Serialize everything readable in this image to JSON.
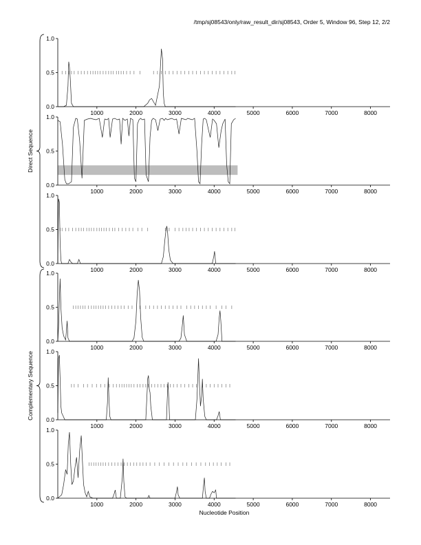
{
  "page": {
    "title": "/tmp/sj08543/only/raw_result_dir/sj08543, Order 5, Window 96, Step 12, 2/2"
  },
  "chart_data": {
    "type": "line",
    "xlabel": "Nucleotide Position",
    "xlim": [
      0,
      8500
    ],
    "ylim": [
      0,
      1
    ],
    "x_ticks": [
      "1000",
      "2000",
      "3000",
      "4000",
      "5000",
      "6000",
      "7000",
      "8000"
    ],
    "y_ticks": [
      "0.0",
      "0.5",
      "1.0"
    ],
    "group_labels": [
      "Direct Sequence",
      "Complementary Sequence"
    ],
    "panels": [
      {
        "group": "Direct Sequence",
        "frame": 1,
        "series": [
          {
            "x": [
              0,
              150,
              220,
              260,
              280,
              300,
              320,
              350,
              400,
              2200,
              2300,
              2350,
              2400,
              2500,
              2600,
              2650,
              2680,
              2700,
              2720,
              2750,
              2800,
              4550
            ],
            "y": [
              0,
              0,
              0.02,
              0.3,
              0.66,
              0.58,
              0.4,
              0.05,
              0,
              0,
              0.05,
              0.1,
              0.12,
              0.02,
              0.3,
              0.85,
              0.7,
              0.2,
              0.05,
              0,
              0,
              0
            ]
          }
        ],
        "stop_ticks": {
          "y": 0.5,
          "x": [
            110,
            200,
            280,
            350,
            420,
            520,
            600,
            680,
            760,
            840,
            900,
            960,
            1020,
            1080,
            1160,
            1230,
            1300,
            1360,
            1420,
            1500,
            1560,
            1620,
            1680,
            1760,
            1850,
            1950,
            2100,
            2450,
            2550,
            2650,
            2750,
            2850,
            2950,
            3050,
            3150,
            3250,
            3350,
            3450,
            3550,
            3650,
            3750,
            3850,
            3950,
            4050,
            4150,
            4250,
            4350,
            4450,
            4530
          ]
        }
      },
      {
        "group": "Direct Sequence",
        "frame": 1,
        "series": [
          {
            "x": [
              0,
              60,
              120,
              180,
              220,
              280,
              350,
              400,
              460,
              500,
              560,
              620,
              680,
              760,
              840,
              900,
              980,
              1060,
              1140,
              1200,
              1260,
              1300,
              1340,
              1400,
              1460,
              1520,
              1580,
              1620,
              1660,
              1720,
              1780,
              1820,
              1860,
              1920,
              1960,
              2000,
              2040,
              2080,
              2120,
              2160,
              2220,
              2260,
              2320,
              2360,
              2400,
              2440,
              2500,
              2560,
              2620,
              2680,
              2720,
              2760,
              2800,
              2860,
              2920,
              2980,
              3040,
              3100,
              3160,
              3220,
              3280,
              3320,
              3380,
              3440,
              3500,
              3560,
              3600,
              3640,
              3680,
              3720,
              3760,
              3800,
              3860,
              3900,
              3960,
              4000,
              4060,
              4120,
              4180,
              4220,
              4280,
              4320,
              4360,
              4400,
              4440,
              4500,
              4550
            ],
            "y": [
              0.95,
              0.93,
              0.6,
              0.08,
              0.02,
              0.02,
              0.05,
              0.85,
              0.98,
              0.97,
              0.65,
              0.1,
              0.95,
              0.97,
              0.98,
              0.97,
              0.96,
              0.98,
              0.7,
              0.97,
              0.96,
              0.98,
              0.7,
              0.97,
              0.98,
              0.96,
              0.97,
              0.6,
              0.98,
              0.95,
              0.97,
              0.72,
              0.98,
              0.96,
              0.1,
              0.05,
              0.9,
              0.96,
              0.98,
              0.96,
              0.97,
              0.15,
              0.05,
              0.7,
              0.95,
              0.98,
              0.96,
              0.8,
              0.97,
              0.98,
              0.95,
              0.98,
              0.96,
              0.97,
              0.98,
              0.96,
              0.97,
              0.75,
              0.98,
              0.97,
              0.96,
              0.98,
              0.97,
              0.96,
              0.98,
              0.5,
              0.05,
              0.02,
              0.6,
              0.97,
              0.98,
              0.96,
              0.8,
              0.7,
              0.97,
              0.95,
              0.9,
              0.55,
              0.8,
              0.9,
              0.97,
              0.3,
              0.05,
              0.02,
              0.9,
              0.96,
              0.98
            ]
          }
        ],
        "shade_band": {
          "x": [
            0,
            4600
          ],
          "y": [
            0.15,
            0.29
          ]
        }
      },
      {
        "group": "Direct Sequence",
        "frame": 1,
        "series": [
          {
            "x": [
              0,
              20,
              40,
              60,
              80,
              100,
              140,
              200,
              260,
              300,
              340,
              380,
              500,
              540,
              580,
              2650,
              2700,
              2740,
              2770,
              2790,
              2810,
              2840,
              2880,
              2950,
              3950,
              3990,
              4010,
              4040,
              4550
            ],
            "y": [
              0,
              0.95,
              0.9,
              0.3,
              0.05,
              0,
              0,
              0,
              0,
              0.06,
              0.02,
              0,
              0,
              0.06,
              0,
              0,
              0.1,
              0.35,
              0.5,
              0.55,
              0.45,
              0.2,
              0.05,
              0,
              0,
              0.1,
              0.18,
              0,
              0
            ]
          }
        ],
        "stop_ticks": {
          "y": 0.5,
          "x": [
            60,
            110,
            200,
            280,
            380,
            460,
            540,
            600,
            660,
            740,
            800,
            860,
            920,
            1000,
            1060,
            1120,
            1180,
            1240,
            1320,
            1400,
            1460,
            1560,
            1650,
            1740,
            1830,
            1920,
            2050,
            2150,
            2300,
            2750,
            2800,
            2850,
            3000,
            3100,
            3200,
            3280,
            3360,
            3450,
            3550,
            3650,
            3750,
            3850,
            3950,
            4050,
            4150,
            4250,
            4350,
            4450,
            4530
          ]
        }
      },
      {
        "group": "Complementary Sequence",
        "frame": 2,
        "series": [
          {
            "x": [
              0,
              20,
              40,
              60,
              80,
              110,
              150,
              200,
              220,
              240,
              260,
              300,
              400,
              1900,
              1950,
              2000,
              2030,
              2060,
              2090,
              2120,
              2160,
              2200,
              2260,
              3100,
              3150,
              3180,
              3210,
              3240,
              3300,
              4050,
              4100,
              4130,
              4150,
              4170,
              4200,
              4550
            ],
            "y": [
              0,
              0.2,
              0.6,
              0.92,
              0.5,
              0.2,
              0.08,
              0.02,
              0.15,
              0.3,
              0.05,
              0,
              0,
              0,
              0.05,
              0.3,
              0.7,
              0.9,
              0.75,
              0.35,
              0.06,
              0,
              0,
              0,
              0.05,
              0.2,
              0.38,
              0.1,
              0,
              0,
              0.1,
              0.35,
              0.45,
              0.3,
              0,
              0
            ]
          }
        ],
        "stop_ticks": {
          "y": 0.5,
          "x": [
            400,
            460,
            520,
            580,
            640,
            700,
            780,
            860,
            920,
            980,
            1040,
            1100,
            1160,
            1220,
            1300,
            1380,
            1460,
            1540,
            1620,
            1700,
            1800,
            1900,
            2100,
            2250,
            2350,
            2450,
            2550,
            2650,
            2750,
            2850,
            2950,
            3050,
            3150,
            3300,
            3400,
            3500,
            3600,
            3700,
            3800,
            3900,
            4050,
            4200,
            4300,
            4450
          ]
        }
      },
      {
        "group": "Complementary Sequence",
        "frame": 2,
        "series": [
          {
            "x": [
              0,
              20,
              40,
              60,
              80,
              100,
              140,
              180,
              1240,
              1270,
              1290,
              1310,
              1330,
              1360,
              2250,
              2280,
              2300,
              2320,
              2340,
              2360,
              2380,
              2420,
              2780,
              2800,
              2820,
              2840,
              2860,
              3520,
              3560,
              3600,
              3620,
              3650,
              3680,
              3700,
              3720,
              3760,
              3800,
              4060,
              4100,
              4130,
              4160,
              4550
            ],
            "y": [
              0.1,
              0.9,
              0.95,
              0.6,
              0.2,
              0.1,
              0.05,
              0,
              0,
              0.25,
              0.62,
              0.3,
              0.05,
              0,
              0,
              0.35,
              0.6,
              0.65,
              0.45,
              0.4,
              0.2,
              0,
              0,
              0.3,
              0.55,
              0.3,
              0,
              0,
              0.3,
              0.9,
              0.6,
              0.2,
              0.35,
              0.6,
              0.3,
              0.05,
              0,
              0,
              0.06,
              0.12,
              0,
              0
            ]
          }
        ],
        "stop_ticks": {
          "y": 0.5,
          "x": [
            350,
            420,
            520,
            660,
            760,
            880,
            990,
            1100,
            1200,
            1320,
            1420,
            1500,
            1580,
            1640,
            1700,
            1760,
            1820,
            1880,
            1950,
            2030,
            2100,
            2180,
            2250,
            2320,
            2400,
            2480,
            2560,
            2640,
            2720,
            2800,
            2880,
            2960,
            3050,
            3150,
            3250,
            3350,
            3450,
            3550,
            3700,
            3800,
            3900,
            4000,
            4100,
            4200,
            4300,
            4400
          ]
        }
      },
      {
        "group": "Complementary Sequence",
        "frame": 2,
        "series": [
          {
            "x": [
              0,
              100,
              150,
              200,
              240,
              270,
              300,
              330,
              360,
              400,
              440,
              480,
              520,
              560,
              600,
              630,
              660,
              700,
              740,
              780,
              820,
              900,
              1400,
              1440,
              1470,
              1500,
              1600,
              1650,
              1670,
              1690,
              1720,
              1760,
              2300,
              2330,
              2360,
              3000,
              3040,
              3060,
              3080,
              3120,
              3700,
              3730,
              3750,
              3770,
              3800,
              3880,
              3920,
              3960,
              4000,
              4040,
              4060,
              4550
            ],
            "y": [
              0,
              0.05,
              0.2,
              0.42,
              0.35,
              0.8,
              0.97,
              0.5,
              0.2,
              0.25,
              0.45,
              0.6,
              0.3,
              0.7,
              0.92,
              0.55,
              0.2,
              0.08,
              0.02,
              0.1,
              0.02,
              0,
              0,
              0.06,
              0.12,
              0,
              0,
              0.3,
              0.58,
              0.25,
              0.02,
              0,
              0,
              0.04,
              0,
              0,
              0.1,
              0.17,
              0.05,
              0,
              0,
              0.2,
              0.3,
              0.1,
              0,
              0,
              0.06,
              0.1,
              0.08,
              0.12,
              0,
              0
            ]
          }
        ],
        "stop_ticks": {
          "y": 0.5,
          "x": [
            800,
            860,
            920,
            980,
            1040,
            1100,
            1160,
            1220,
            1300,
            1380,
            1460,
            1540,
            1620,
            1700,
            1780,
            1860,
            1940,
            2020,
            2100,
            2180,
            2260,
            2360,
            2480,
            2600,
            2720,
            2840,
            2960,
            3080,
            3200,
            3300,
            3420,
            3540,
            3660,
            3780,
            3880,
            3980,
            4080,
            4180,
            4300,
            4400
          ]
        }
      }
    ]
  }
}
